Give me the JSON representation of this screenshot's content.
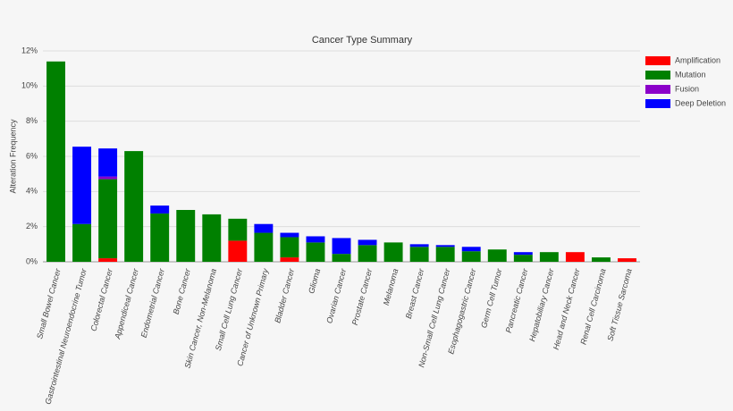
{
  "chart_data": {
    "type": "stacked-bar",
    "title": "Cancer Type Summary",
    "y_label": "Alteration Frequency",
    "categories": [
      "Small Bowel Cancer",
      "Gastrointestinal Neuroendocrine Tumor",
      "Colorectal Cancer",
      "Appendiceal Cancer",
      "Endometrial Cancer",
      "Bone Cancer",
      "Skin Cancer, Non-Melanoma",
      "Small Cell Lung Cancer",
      "Cancer of Unknown Primary",
      "Bladder Cancer",
      "Glioma",
      "Ovarian Cancer",
      "Prostate Cancer",
      "Melanoma",
      "Breast Cancer",
      "Non-Small Cell Lung Cancer",
      "Esophagogastric Cancer",
      "Germ Cell Tumor",
      "Pancreatic Cancer",
      "Hepatobiliary Cancer",
      "Head and Neck Cancer",
      "Renal Cell Carcinoma",
      "Soft Tissue Sarcoma"
    ],
    "series": [
      {
        "name": "Amplification",
        "color": "#ff0000",
        "values": [
          0,
          0,
          0.2,
          0,
          0,
          0,
          0,
          1.2,
          0,
          0.25,
          0,
          0,
          0,
          0,
          0,
          0,
          0,
          0,
          0,
          0,
          0.55,
          0,
          0.2
        ]
      },
      {
        "name": "Mutation",
        "color": "#008000",
        "values": [
          11.4,
          2.15,
          4.5,
          6.3,
          2.75,
          2.95,
          2.7,
          1.25,
          1.65,
          1.15,
          1.1,
          0.45,
          0.95,
          1.1,
          0.85,
          0.85,
          0.6,
          0.7,
          0.4,
          0.55,
          0,
          0.25,
          0
        ]
      },
      {
        "name": "Fusion",
        "color": "#8b00c9",
        "values": [
          0,
          0,
          0.15,
          0,
          0,
          0,
          0,
          0,
          0,
          0,
          0,
          0,
          0,
          0,
          0,
          0,
          0,
          0,
          0,
          0,
          0,
          0,
          0
        ]
      },
      {
        "name": "Deep Deletion",
        "color": "#0000ff",
        "values": [
          0,
          4.4,
          1.6,
          0,
          0.45,
          0,
          0,
          0,
          0.5,
          0.25,
          0.35,
          0.9,
          0.3,
          0,
          0.15,
          0.1,
          0.25,
          0,
          0.15,
          0,
          0,
          0,
          0
        ]
      }
    ],
    "ylim": [
      0,
      12
    ],
    "yticks": [
      {
        "value": 0,
        "label": "0%"
      },
      {
        "value": 2,
        "label": "2%"
      },
      {
        "value": 4,
        "label": "4%"
      },
      {
        "value": 6,
        "label": "6%"
      },
      {
        "value": 8,
        "label": "8%"
      },
      {
        "value": 10,
        "label": "10%"
      },
      {
        "value": 12,
        "label": "12%"
      }
    ],
    "grid": true,
    "legend": "right"
  }
}
